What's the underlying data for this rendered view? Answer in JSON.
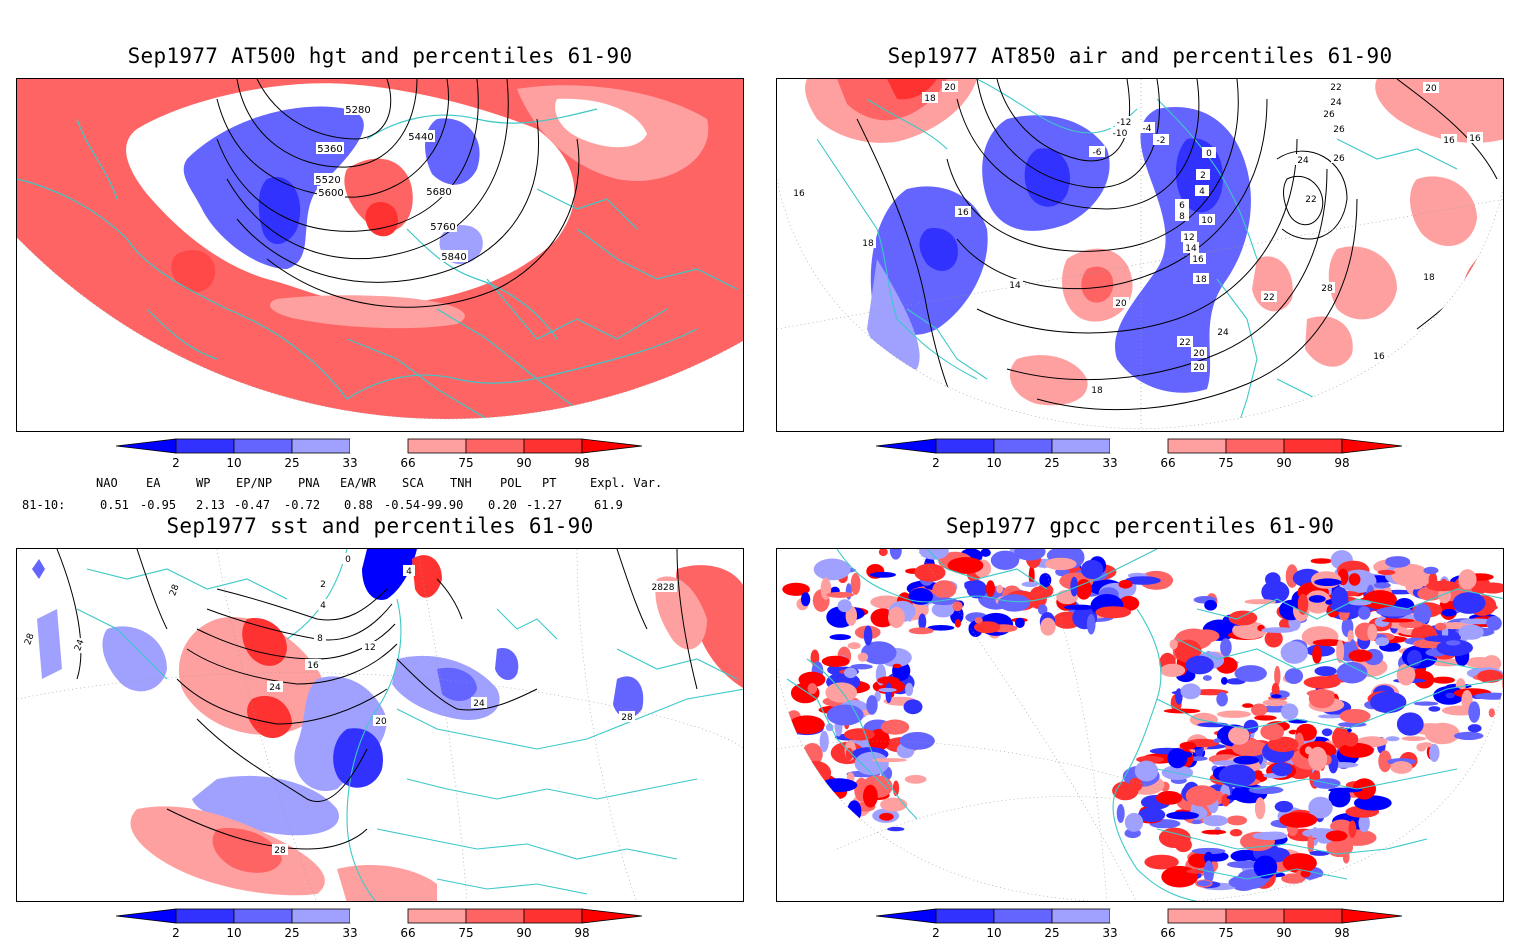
{
  "panels": [
    {
      "title": "Sep1977 AT500 hgt and percentiles 61-90",
      "contour_labels": [
        "5280",
        "5360",
        "5440",
        "5520",
        "5600",
        "5680",
        "5760",
        "5840"
      ]
    },
    {
      "title": "Sep1977 AT850 air and percentiles 61-90",
      "contour_labels": [
        "20",
        "18",
        "16",
        "14",
        "18",
        "16",
        "-4",
        "-2",
        "-10",
        "-12",
        "-6",
        "0",
        "2",
        "4",
        "6",
        "8",
        "10",
        "12",
        "14",
        "16",
        "18",
        "22",
        "26",
        "28",
        "26",
        "24",
        "22",
        "20",
        "24",
        "20",
        "22",
        "20",
        "18",
        "16",
        "18",
        "16",
        "20",
        "22",
        "24",
        "26",
        "16"
      ]
    },
    {
      "title": "Sep1977 sst and percentiles 61-90",
      "contour_labels": [
        "28",
        "24",
        "28",
        "28",
        "2828",
        "0",
        "4",
        "2",
        "4",
        "8",
        "12",
        "16",
        "20",
        "24",
        "24",
        "28"
      ]
    },
    {
      "title": "Sep1977 gpcc percentiles 61-90",
      "contour_labels": []
    }
  ],
  "colorbar": {
    "labels": [
      "2",
      "10",
      "25",
      "33",
      "66",
      "75",
      "90",
      "98"
    ],
    "colors": {
      "below_2": "#0000ff",
      "p2_10": "#3232ff",
      "p10_25": "#6464ff",
      "p25_33": "#a0a0ff",
      "p33_66": "#ffffff",
      "p66_75": "#ffa0a0",
      "p75_90": "#ff6464",
      "p90_98": "#ff3232",
      "above_98": "#ff0000"
    }
  },
  "indices": {
    "headers": [
      "NAO",
      "EA",
      "WP",
      "EP/NP",
      "PNA",
      "EA/WR",
      "SCA",
      "TNH",
      "POL",
      "PT",
      "Expl. Var."
    ],
    "row_label": "81-10:",
    "values": [
      "0.51",
      "-0.95",
      "2.13",
      "-0.47",
      "-0.72",
      "0.88",
      "-0.54",
      "-99.90",
      "0.20",
      "-1.27",
      "61.9"
    ]
  },
  "map_colors": {
    "coast": "#3cc8c8",
    "contour": "#000000",
    "grid": "#999999"
  }
}
